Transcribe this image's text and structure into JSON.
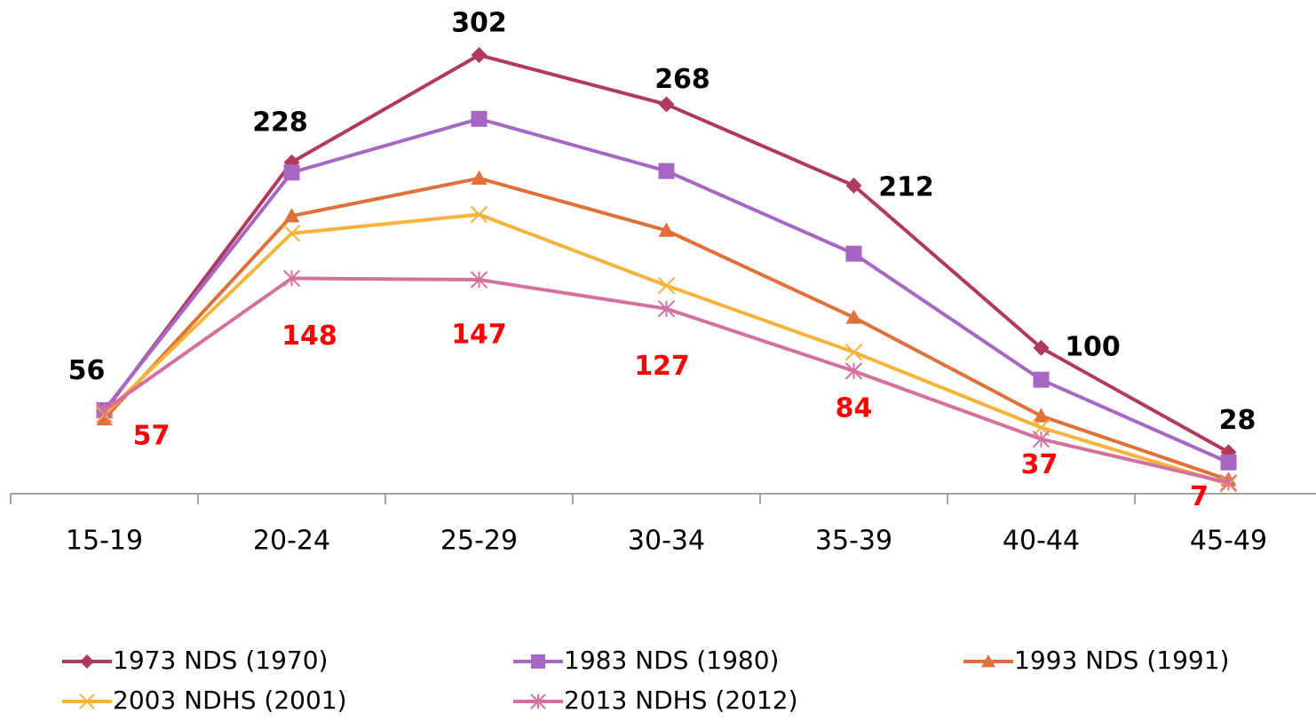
{
  "chart_data": {
    "type": "line",
    "categories": [
      "15-19",
      "20-24",
      "25-29",
      "30-34",
      "35-39",
      "40-44",
      "45-49"
    ],
    "series": [
      {
        "name": "1973 NDS (1970)",
        "color": "#b03a5b",
        "marker": "diamond",
        "values": [
          56,
          228,
          302,
          268,
          212,
          100,
          28
        ],
        "labels_color": "#000000"
      },
      {
        "name": "1983 NDS (1980)",
        "color": "#a866c4",
        "marker": "square",
        "values": [
          57,
          221,
          258,
          222,
          165,
          78,
          21
        ]
      },
      {
        "name": "1993 NDS (1991)",
        "color": "#e0703a",
        "marker": "triangle",
        "values": [
          51,
          191,
          217,
          181,
          121,
          53,
          9
        ]
      },
      {
        "name": "2003 NDHS (2001)",
        "color": "#f6b33a",
        "marker": "x",
        "values": [
          54,
          179,
          192,
          143,
          97,
          45,
          6
        ]
      },
      {
        "name": "2013 NDHS (2012)",
        "color": "#d4709e",
        "marker": "asterisk",
        "values": [
          57,
          148,
          147,
          127,
          84,
          37,
          7
        ],
        "labels_color": "#ff0000"
      }
    ],
    "ylim": [
      0,
      340
    ],
    "legend": "bottom"
  }
}
